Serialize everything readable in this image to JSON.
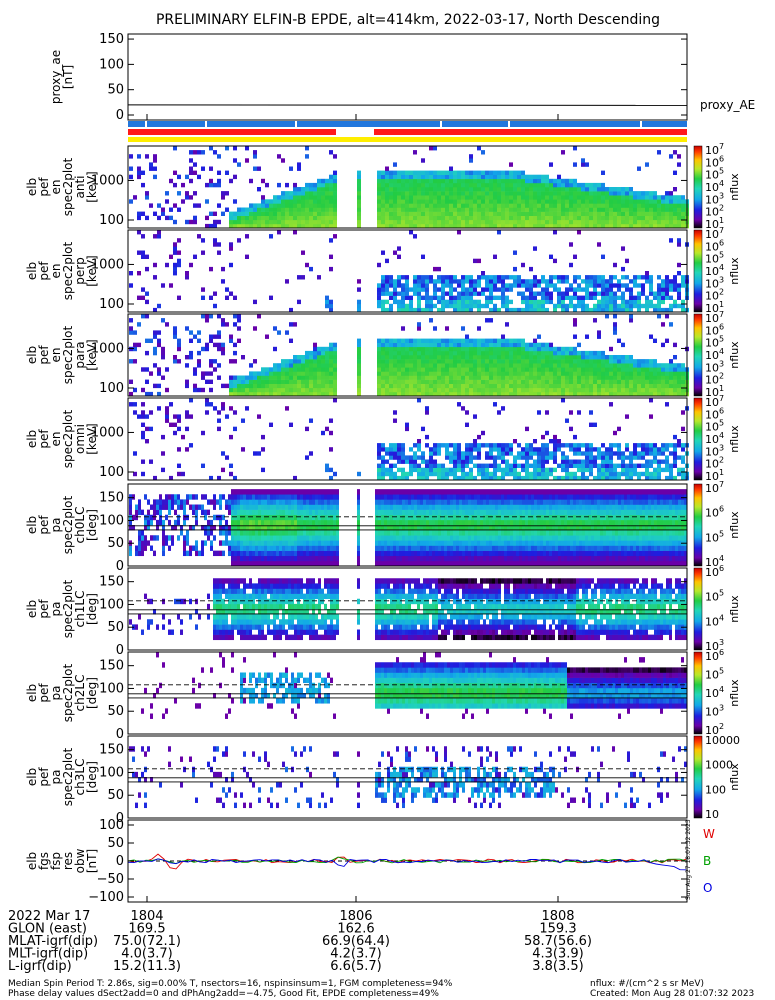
{
  "chart_data": {
    "type": "heatmap",
    "title": "PRELIMINARY ELFIN-B EPDE, alt=414km, 2022-03-17, North Descending",
    "x_tick_labels": [
      "1804",
      "1806",
      "1808"
    ],
    "panels": [
      {
        "ylabel": [
          "proxy_ae",
          "[nT]"
        ],
        "ytick_labels": [
          "150",
          "100",
          "50",
          "0"
        ],
        "legend": "proxy_AE",
        "kind": "line"
      },
      {
        "ylabel": [
          "elb",
          "pef",
          "en",
          "spec2plot",
          "anti",
          "[keV]"
        ],
        "ytick_labels": [
          "1000",
          "100"
        ],
        "kind": "spec_full",
        "colorbar_ticks": [
          "10^7",
          "10^6",
          "10^5",
          "10^4",
          "10^3",
          "10^2",
          "10^1"
        ],
        "colorbar_label": "nflux"
      },
      {
        "ylabel": [
          "elb",
          "pef",
          "en",
          "spec2plot",
          "perp",
          "[keV]"
        ],
        "ytick_labels": [
          "1000",
          "100"
        ],
        "kind": "spec_sparse",
        "colorbar_ticks": [
          "10^7",
          "10^6",
          "10^5",
          "10^4",
          "10^3",
          "10^2",
          "10^1"
        ],
        "colorbar_label": "nflux"
      },
      {
        "ylabel": [
          "elb",
          "pef",
          "en",
          "spec2plot",
          "para",
          "[keV]"
        ],
        "ytick_labels": [
          "1000",
          "100"
        ],
        "kind": "spec_full",
        "colorbar_ticks": [
          "10^7",
          "10^6",
          "10^5",
          "10^4",
          "10^3",
          "10^2",
          "10^1"
        ],
        "colorbar_label": "nflux"
      },
      {
        "ylabel": [
          "elb",
          "pef",
          "en",
          "spec2plot",
          "omni",
          "[keV]"
        ],
        "ytick_labels": [
          "1000",
          "100"
        ],
        "kind": "spec_sparse",
        "colorbar_ticks": [
          "10^7",
          "10^6",
          "10^5",
          "10^4",
          "10^3",
          "10^2",
          "10^1"
        ],
        "colorbar_label": "nflux"
      },
      {
        "ylabel": [
          "elb",
          "pef",
          "pa",
          "spec2plot",
          "ch0LC",
          "[deg]"
        ],
        "ytick_labels": [
          "150",
          "100",
          "50",
          "0"
        ],
        "kind": "pa0",
        "colorbar_ticks": [
          "10^7",
          "10^6",
          "10^5",
          "10^4"
        ],
        "colorbar_label": "nflux"
      },
      {
        "ylabel": [
          "elb",
          "pef",
          "pa",
          "spec2plot",
          "ch1LC",
          "[deg]"
        ],
        "ytick_labels": [
          "150",
          "100",
          "50",
          "0"
        ],
        "kind": "pa1",
        "colorbar_ticks": [
          "10^6",
          "10^5",
          "10^4",
          "10^3"
        ],
        "colorbar_label": "nflux"
      },
      {
        "ylabel": [
          "elb",
          "pef",
          "pa",
          "spec2plot",
          "ch2LC",
          "[deg]"
        ],
        "ytick_labels": [
          "150",
          "100",
          "50",
          "0"
        ],
        "kind": "pa2",
        "colorbar_ticks": [
          "10^6",
          "10^5",
          "10^4",
          "10^3",
          "10^2"
        ],
        "colorbar_label": "nflux"
      },
      {
        "ylabel": [
          "elb",
          "pef",
          "pa",
          "spec2plot",
          "ch3LC",
          "[deg]"
        ],
        "ytick_labels": [
          "150",
          "100",
          "50",
          "0"
        ],
        "kind": "pa3",
        "colorbar_ticks": [
          "10000",
          "1000",
          "100",
          "10"
        ],
        "colorbar_label": "nflux"
      },
      {
        "ylabel": [
          "elb",
          "fgs",
          "fsp",
          "res",
          "obw",
          "[nT]"
        ],
        "ytick_labels": [
          "100",
          "50",
          "0",
          "−50",
          "−100"
        ],
        "kind": "mag",
        "legend": [
          "W",
          "B",
          "O"
        ],
        "legend_colors": [
          "#e00000",
          "#00a000",
          "#0000e0"
        ]
      }
    ],
    "orbit_table": {
      "rows": [
        {
          "label": "2022 Mar 17",
          "values": [
            "1804",
            "1806",
            "1808"
          ]
        },
        {
          "label": "GLON (east)",
          "values": [
            "169.5",
            "162.6",
            "159.3"
          ]
        },
        {
          "label": "MLAT-igrf(dip)",
          "values": [
            "75.0(72.1)",
            "66.9(64.4)",
            "58.7(56.6)"
          ]
        },
        {
          "label": "MLT-igrf(dip)",
          "values": [
            "4.0(3.7)",
            "4.2(3.7)",
            "4.3(3.9)"
          ]
        },
        {
          "label": "L-igrf(dip)",
          "values": [
            "15.2(11.3)",
            "6.6(5.7)",
            "3.8(3.5)"
          ]
        }
      ]
    }
  },
  "footer": {
    "line1": "Median Spin Period T: 2.86s, sig=0.00% T, nsectors=16, nspinsinsum=1, FGM completeness=94%",
    "line2": "Phase delay values dSect2add=0 and dPhAng2add=−4.75, Good Fit, EPDE completeness=49%",
    "units": "nflux: #/(cm^2 s sr MeV)",
    "created": "Created: Mon Aug 28 01:07:32 2023"
  },
  "side_stamp": "Sun Aug 27 18:07:32 2023",
  "colors": {
    "red_bar": "#ff1a1a",
    "blue_bar": "#2277dd",
    "yellow_bar": "#ffee00"
  }
}
